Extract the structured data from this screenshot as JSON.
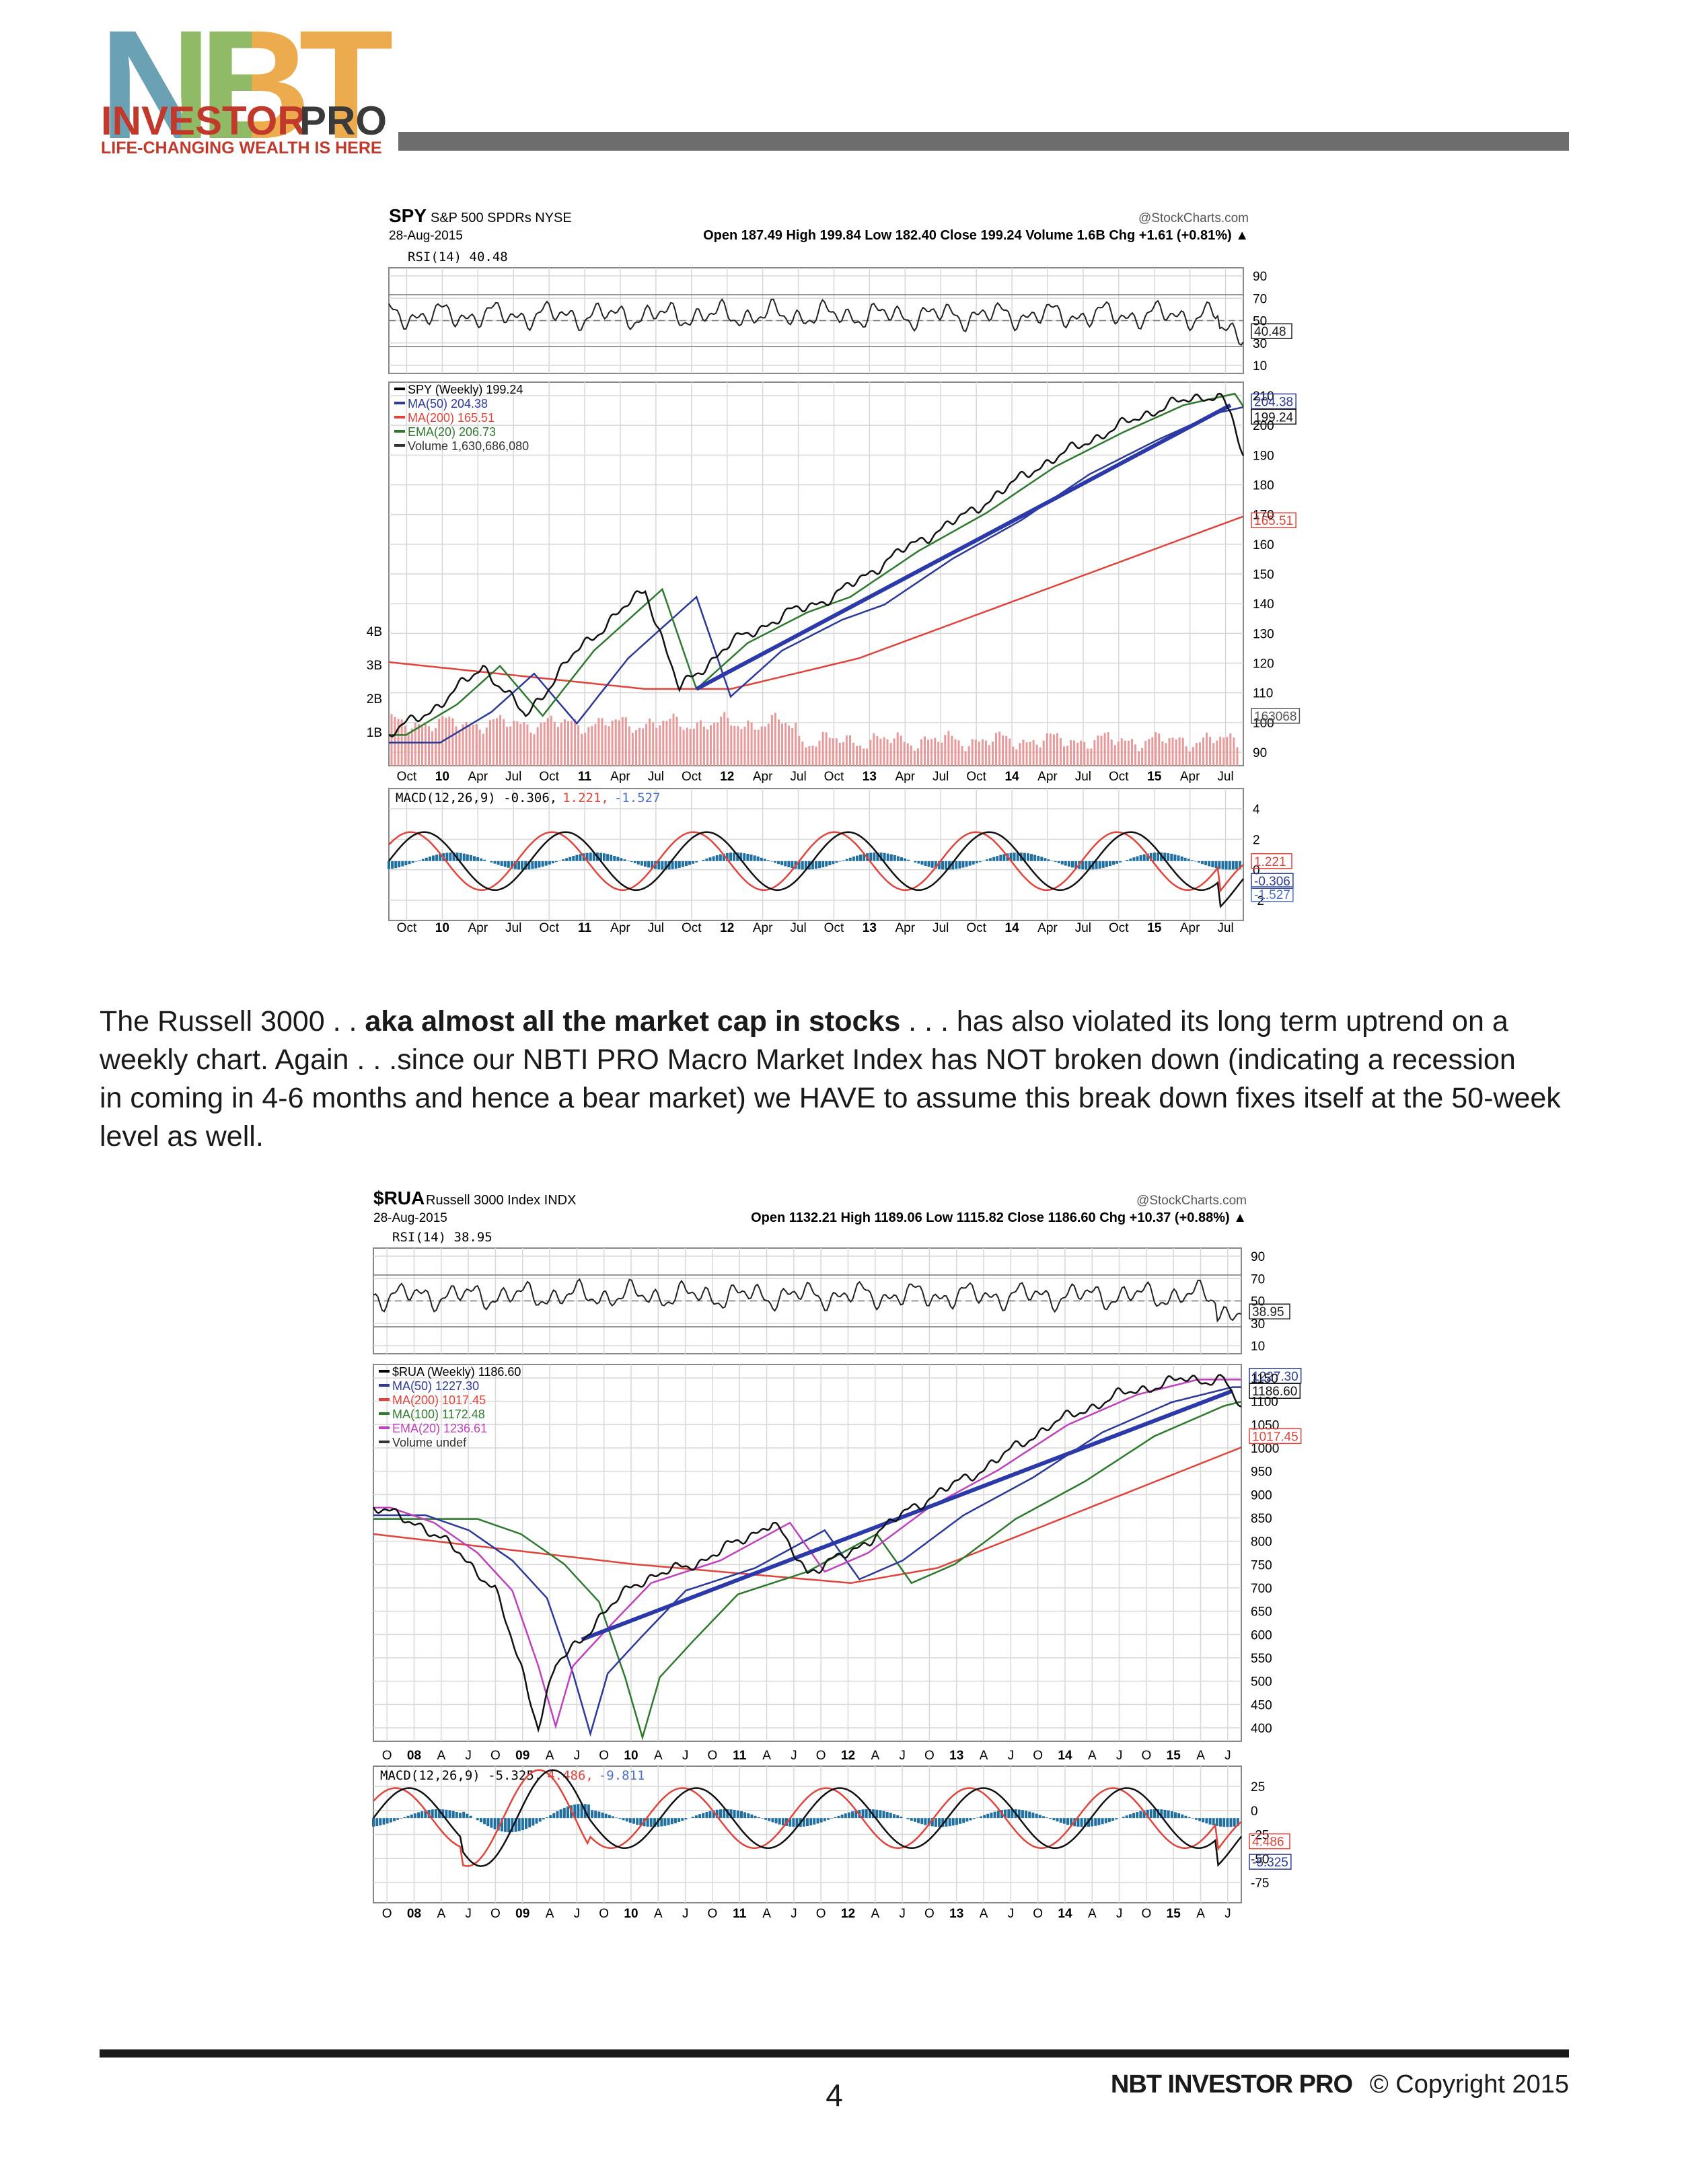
{
  "header": {
    "logo_letters": "NBT",
    "logo_investor": "INVESTOR",
    "logo_pro": "PRO",
    "tagline": "LIFE-CHANGING WEALTH IS HERE"
  },
  "figures": [
    {
      "symbol": "SPY",
      "name": "S&P 500 SPDRs NYSE",
      "date": "28-Aug-2015",
      "source": "@StockCharts.com",
      "quote": "Open 187.49 High 199.84 Low 182.40 Close 199.24 Volume 1.6B Chg +1.61 (+0.81%) ▲",
      "rsi": {
        "label": "RSI(14) 40.48",
        "ticks": [
          "90",
          "70",
          "50",
          "30",
          "10"
        ],
        "tag": "40.48"
      },
      "price": {
        "legend": [
          {
            "text": "SPY (Weekly) 199.24",
            "color": "#000000"
          },
          {
            "text": "MA(50) 204.38",
            "color": "#2b3a9a"
          },
          {
            "text": "MA(200) 165.51",
            "color": "#e0443a"
          },
          {
            "text": "EMA(20) 206.73",
            "color": "#2d7a2d"
          },
          {
            "text": "Volume 1,630,686,080",
            "color": "#333333"
          }
        ],
        "ticks": [
          "210",
          "200",
          "190",
          "180",
          "170",
          "160",
          "150",
          "140",
          "130",
          "120",
          "110",
          "100",
          "90"
        ],
        "volume_ticks": [
          "4B",
          "3B",
          "2B",
          "1B"
        ],
        "tags": [
          "204.38",
          "199.24",
          "165.51",
          "163068"
        ]
      },
      "x_labels": [
        "Oct",
        "10",
        "Apr",
        "Jul",
        "Oct",
        "11",
        "Apr",
        "Jul",
        "Oct",
        "12",
        "Apr",
        "Jul",
        "Oct",
        "13",
        "Apr",
        "Jul",
        "Oct",
        "14",
        "Apr",
        "Jul",
        "Oct",
        "15",
        "Apr",
        "Jul"
      ],
      "macd": {
        "label_parts": [
          {
            "text": "MACD(12,26,9) -0.306,",
            "color": "#000000"
          },
          {
            "text": "1.221,",
            "color": "#e0443a"
          },
          {
            "text": "-1.527",
            "color": "#4a6fd0"
          }
        ],
        "ticks": [
          "4",
          "2",
          "0",
          "-2"
        ],
        "tags": [
          "1.221",
          "-0.306",
          "-1.527"
        ]
      }
    },
    {
      "symbol": "$RUA",
      "name": "Russell 3000 Index INDX",
      "date": "28-Aug-2015",
      "source": "@StockCharts.com",
      "quote": "Open 1132.21 High 1189.06 Low 1115.82 Close 1186.60 Chg +10.37 (+0.88%) ▲",
      "rsi": {
        "label": "RSI(14) 38.95",
        "ticks": [
          "90",
          "70",
          "50",
          "30",
          "10"
        ],
        "tag": "38.95"
      },
      "price": {
        "legend": [
          {
            "text": "$RUA (Weekly) 1186.60",
            "color": "#000000"
          },
          {
            "text": "MA(50) 1227.30",
            "color": "#2b3a9a"
          },
          {
            "text": "MA(200) 1017.45",
            "color": "#e0443a"
          },
          {
            "text": "MA(100) 1172.48",
            "color": "#2d7a2d"
          },
          {
            "text": "EMA(20) 1236.61",
            "color": "#c040c0"
          },
          {
            "text": "Volume undef",
            "color": "#333333"
          }
        ],
        "ticks": [
          "1150",
          "1100",
          "1050",
          "1000",
          "950",
          "900",
          "850",
          "800",
          "750",
          "700",
          "650",
          "600",
          "550",
          "500",
          "450",
          "400"
        ],
        "volume_ticks": [],
        "tags": [
          "1227.30",
          "1186.60",
          "1017.45"
        ]
      },
      "x_labels": [
        "O",
        "08",
        "A",
        "J",
        "O",
        "09",
        "A",
        "J",
        "O",
        "10",
        "A",
        "J",
        "O",
        "11",
        "A",
        "J",
        "O",
        "12",
        "A",
        "J",
        "O",
        "13",
        "A",
        "J",
        "O",
        "14",
        "A",
        "J",
        "O",
        "15",
        "A",
        "J"
      ],
      "macd": {
        "label_parts": [
          {
            "text": "MACD(12,26,9) -5.325,",
            "color": "#000000"
          },
          {
            "text": "4.486,",
            "color": "#e0443a"
          },
          {
            "text": "-9.811",
            "color": "#4a6fd0"
          }
        ],
        "ticks": [
          "25",
          "0",
          "-25",
          "-50",
          "-75"
        ],
        "tags": [
          "4.486",
          "-5.325"
        ]
      }
    }
  ],
  "paragraph": {
    "lines": [
      [
        "The Russell 3000 . . ",
        "aka almost all the market cap in stocks",
        " . . . has also violated its long term uptrend on a"
      ],
      [
        "weekly chart. Again . . .since our NBTI PRO Macro Market Index has NOT broken down (indicating a recession"
      ],
      [
        "in coming in 4-6 months and hence a bear market) we HAVE to assume this break down fixes itself at the 50-week"
      ],
      [
        "level as well."
      ]
    ]
  },
  "footer": {
    "page": "4",
    "brand": "NBT INVESTOR PRO",
    "copyright": "© Copyright 2015"
  }
}
